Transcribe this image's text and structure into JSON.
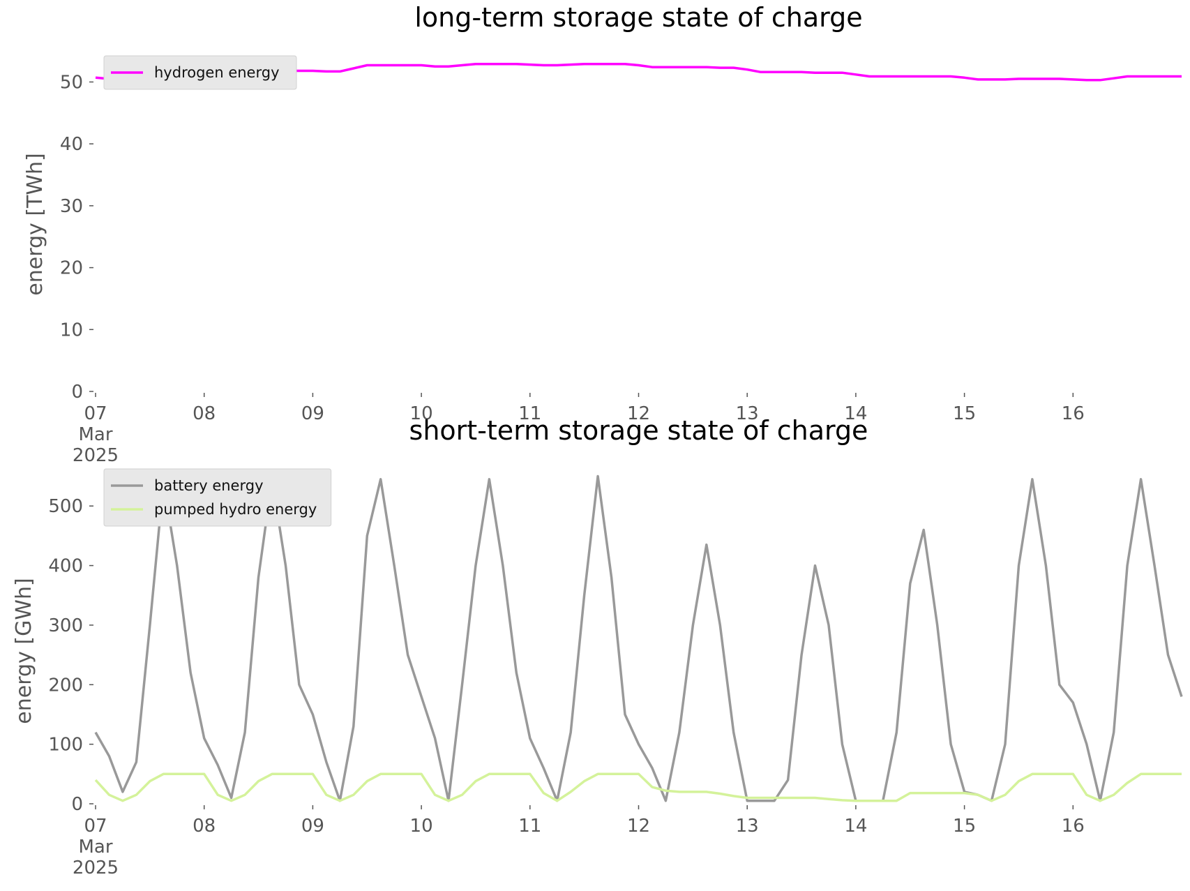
{
  "chart_data": [
    {
      "type": "line",
      "title": "long-term storage state of charge",
      "y_label": "energy [TWh]",
      "x": [
        7,
        7.125,
        7.25,
        7.375,
        7.5,
        7.625,
        7.75,
        7.875,
        8,
        8.125,
        8.25,
        8.375,
        8.5,
        8.625,
        8.75,
        8.875,
        9,
        9.125,
        9.25,
        9.375,
        9.5,
        9.625,
        9.75,
        9.875,
        10,
        10.125,
        10.25,
        10.375,
        10.5,
        10.625,
        10.75,
        10.875,
        11,
        11.125,
        11.25,
        11.375,
        11.5,
        11.625,
        11.75,
        11.875,
        12,
        12.125,
        12.25,
        12.375,
        12.5,
        12.625,
        12.75,
        12.875,
        13,
        13.125,
        13.25,
        13.375,
        13.5,
        13.625,
        13.75,
        13.875,
        14,
        14.125,
        14.25,
        14.375,
        14.5,
        14.625,
        14.75,
        14.875,
        15,
        15.125,
        15.25,
        15.375,
        15.5,
        15.625,
        15.75,
        15.875,
        16,
        16.125,
        16.25,
        16.375,
        16.5,
        16.625,
        16.75,
        16.875,
        17
      ],
      "series": [
        {
          "name": "hydrogen energy",
          "color": "#ff00ff",
          "values": [
            50.7,
            50.5,
            50.5,
            51,
            51.5,
            51.5,
            51.2,
            51,
            51,
            51,
            51.2,
            51.5,
            51.8,
            51.8,
            51.8,
            51.8,
            51.8,
            51.7,
            51.7,
            52.2,
            52.7,
            52.7,
            52.7,
            52.7,
            52.7,
            52.5,
            52.5,
            52.7,
            52.9,
            52.9,
            52.9,
            52.9,
            52.8,
            52.7,
            52.7,
            52.8,
            52.9,
            52.9,
            52.9,
            52.9,
            52.7,
            52.4,
            52.4,
            52.4,
            52.4,
            52.4,
            52.3,
            52.3,
            52,
            51.6,
            51.6,
            51.6,
            51.6,
            51.5,
            51.5,
            51.5,
            51.2,
            50.9,
            50.9,
            50.9,
            50.9,
            50.9,
            50.9,
            50.9,
            50.7,
            50.4,
            50.4,
            50.4,
            50.5,
            50.5,
            50.5,
            50.5,
            50.4,
            50.3,
            50.3,
            50.6,
            50.9,
            50.9,
            50.9,
            50.9,
            50.9
          ]
        }
      ],
      "xlim": [
        7,
        17
      ],
      "xticks": [
        {
          "value": 7,
          "label": "07\nMar\n2025"
        },
        {
          "value": 8,
          "label": "08"
        },
        {
          "value": 9,
          "label": "09"
        },
        {
          "value": 10,
          "label": "10"
        },
        {
          "value": 11,
          "label": "11"
        },
        {
          "value": 12,
          "label": "12"
        },
        {
          "value": 13,
          "label": "13"
        },
        {
          "value": 14,
          "label": "14"
        },
        {
          "value": 15,
          "label": "15"
        },
        {
          "value": 16,
          "label": "16"
        }
      ],
      "ylim": [
        0,
        54
      ],
      "yticks": [
        0,
        10,
        20,
        30,
        40,
        50
      ],
      "grid": false,
      "legend": "upper left"
    },
    {
      "type": "line",
      "title": "short-term storage state of charge",
      "y_label": "energy [GWh]",
      "x": [
        7,
        7.125,
        7.25,
        7.375,
        7.5,
        7.625,
        7.75,
        7.875,
        8,
        8.125,
        8.25,
        8.375,
        8.5,
        8.625,
        8.75,
        8.875,
        9,
        9.125,
        9.25,
        9.375,
        9.5,
        9.625,
        9.75,
        9.875,
        10,
        10.125,
        10.25,
        10.375,
        10.5,
        10.625,
        10.75,
        10.875,
        11,
        11.125,
        11.25,
        11.375,
        11.5,
        11.625,
        11.75,
        11.875,
        12,
        12.125,
        12.25,
        12.375,
        12.5,
        12.625,
        12.75,
        12.875,
        13,
        13.125,
        13.25,
        13.375,
        13.5,
        13.625,
        13.75,
        13.875,
        14,
        14.125,
        14.25,
        14.375,
        14.5,
        14.625,
        14.75,
        14.875,
        15,
        15.125,
        15.25,
        15.375,
        15.5,
        15.625,
        15.75,
        15.875,
        16,
        16.125,
        16.25,
        16.375,
        16.5,
        16.625,
        16.75,
        16.875,
        17
      ],
      "series": [
        {
          "name": "battery energy",
          "color": "#999999",
          "values": [
            120,
            80,
            20,
            70,
            300,
            540,
            400,
            220,
            110,
            65,
            10,
            120,
            380,
            545,
            400,
            200,
            150,
            70,
            5,
            130,
            450,
            545,
            400,
            250,
            180,
            110,
            5,
            200,
            400,
            545,
            400,
            220,
            110,
            60,
            5,
            120,
            350,
            550,
            380,
            150,
            100,
            60,
            5,
            120,
            300,
            435,
            300,
            120,
            5,
            5,
            5,
            40,
            250,
            400,
            300,
            100,
            5,
            5,
            5,
            120,
            370,
            460,
            300,
            100,
            20,
            15,
            5,
            100,
            400,
            545,
            400,
            200,
            170,
            100,
            5,
            120,
            400,
            545,
            400,
            250,
            180
          ]
        },
        {
          "name": "pumped hydro energy",
          "color": "#d4f29a",
          "values": [
            40,
            15,
            5,
            15,
            38,
            50,
            50,
            50,
            50,
            15,
            5,
            15,
            38,
            50,
            50,
            50,
            50,
            15,
            5,
            15,
            38,
            50,
            50,
            50,
            50,
            15,
            5,
            15,
            38,
            50,
            50,
            50,
            50,
            18,
            5,
            20,
            38,
            50,
            50,
            50,
            50,
            28,
            22,
            20,
            20,
            20,
            17,
            13,
            10,
            10,
            10,
            10,
            10,
            10,
            8,
            6,
            5,
            5,
            5,
            5,
            18,
            18,
            18,
            18,
            18,
            15,
            5,
            15,
            38,
            50,
            50,
            50,
            50,
            15,
            5,
            15,
            35,
            50,
            50,
            50,
            50
          ]
        }
      ],
      "xlim": [
        7,
        17
      ],
      "xticks": [
        {
          "value": 7,
          "label": "07\nMar\n2025"
        },
        {
          "value": 8,
          "label": "08"
        },
        {
          "value": 9,
          "label": "09"
        },
        {
          "value": 10,
          "label": "10"
        },
        {
          "value": 11,
          "label": "11"
        },
        {
          "value": 12,
          "label": "12"
        },
        {
          "value": 13,
          "label": "13"
        },
        {
          "value": 14,
          "label": "14"
        },
        {
          "value": 15,
          "label": "15"
        },
        {
          "value": 16,
          "label": "16"
        }
      ],
      "ylim": [
        0,
        560
      ],
      "yticks": [
        0,
        100,
        200,
        300,
        400,
        500
      ],
      "grid": false,
      "legend": "upper left"
    }
  ]
}
